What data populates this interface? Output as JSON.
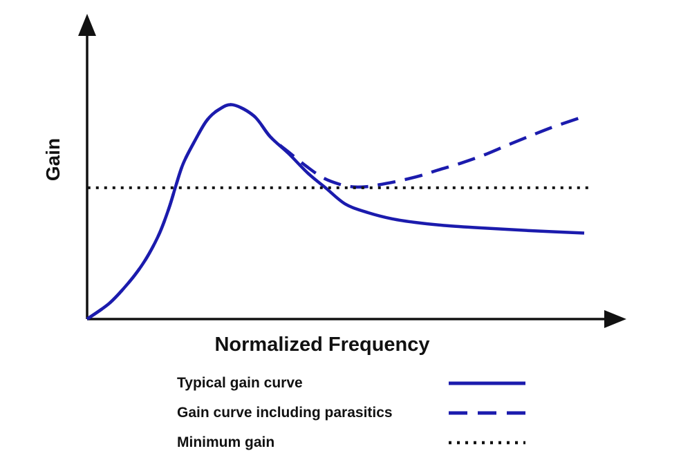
{
  "chart_data": {
    "type": "line",
    "title": "",
    "xlabel": "Normalized Frequency",
    "ylabel": "Gain",
    "x_axis": {
      "range": [
        0,
        1
      ],
      "ticks": "none",
      "units": "normalized (no tick labels shown)"
    },
    "y_axis": {
      "range": [
        0,
        1
      ],
      "ticks": "none",
      "units": "normalized (no tick labels shown)"
    },
    "grid": false,
    "legend_position": "below-chart",
    "axis_color": "#111111",
    "series": [
      {
        "name": "Typical gain curve",
        "style": "solid",
        "color": "#1b1bad",
        "width": 4.5,
        "smooth": true,
        "points": [
          [
            0.0,
            0.0
          ],
          [
            0.04,
            0.05
          ],
          [
            0.07,
            0.105
          ],
          [
            0.095,
            0.16
          ],
          [
            0.115,
            0.215
          ],
          [
            0.135,
            0.285
          ],
          [
            0.152,
            0.365
          ],
          [
            0.165,
            0.44
          ],
          [
            0.178,
            0.51
          ],
          [
            0.198,
            0.58
          ],
          [
            0.222,
            0.653
          ],
          [
            0.245,
            0.69
          ],
          [
            0.271,
            0.705
          ],
          [
            0.31,
            0.668
          ],
          [
            0.34,
            0.6
          ],
          [
            0.374,
            0.545
          ],
          [
            0.41,
            0.48
          ],
          [
            0.444,
            0.43
          ],
          [
            0.48,
            0.378
          ],
          [
            0.522,
            0.35
          ],
          [
            0.566,
            0.33
          ],
          [
            0.61,
            0.318
          ],
          [
            0.67,
            0.307
          ],
          [
            0.74,
            0.299
          ],
          [
            0.823,
            0.291
          ],
          [
            0.923,
            0.283
          ]
        ]
      },
      {
        "name": "Gain curve including parasitics",
        "style": "dashed",
        "color": "#1b1bad",
        "width": 4.5,
        "smooth": true,
        "points": [
          [
            0.0,
            0.0
          ],
          [
            0.04,
            0.05
          ],
          [
            0.07,
            0.105
          ],
          [
            0.095,
            0.16
          ],
          [
            0.115,
            0.215
          ],
          [
            0.135,
            0.285
          ],
          [
            0.152,
            0.365
          ],
          [
            0.165,
            0.44
          ],
          [
            0.178,
            0.51
          ],
          [
            0.198,
            0.58
          ],
          [
            0.222,
            0.653
          ],
          [
            0.245,
            0.69
          ],
          [
            0.271,
            0.705
          ],
          [
            0.31,
            0.668
          ],
          [
            0.34,
            0.6
          ],
          [
            0.374,
            0.55
          ],
          [
            0.407,
            0.503
          ],
          [
            0.438,
            0.465
          ],
          [
            0.468,
            0.444
          ],
          [
            0.495,
            0.435
          ],
          [
            0.52,
            0.436
          ],
          [
            0.545,
            0.443
          ],
          [
            0.58,
            0.455
          ],
          [
            0.617,
            0.471
          ],
          [
            0.651,
            0.49
          ],
          [
            0.694,
            0.513
          ],
          [
            0.737,
            0.54
          ],
          [
            0.78,
            0.572
          ],
          [
            0.823,
            0.603
          ],
          [
            0.865,
            0.632
          ],
          [
            0.92,
            0.665
          ]
        ]
      },
      {
        "name": "Minimum gain",
        "style": "dotted",
        "color": "#121212",
        "width": 4,
        "smooth": false,
        "points": [
          [
            0.001,
            0.432
          ],
          [
            0.936,
            0.432
          ]
        ]
      }
    ],
    "notable_features": {
      "peak_of_typical_curve": [
        0.271,
        0.705
      ],
      "parasitic_curve_min_touches_minimum_gain_line_at_x": 0.495,
      "minimum_gain_level": 0.432
    }
  }
}
